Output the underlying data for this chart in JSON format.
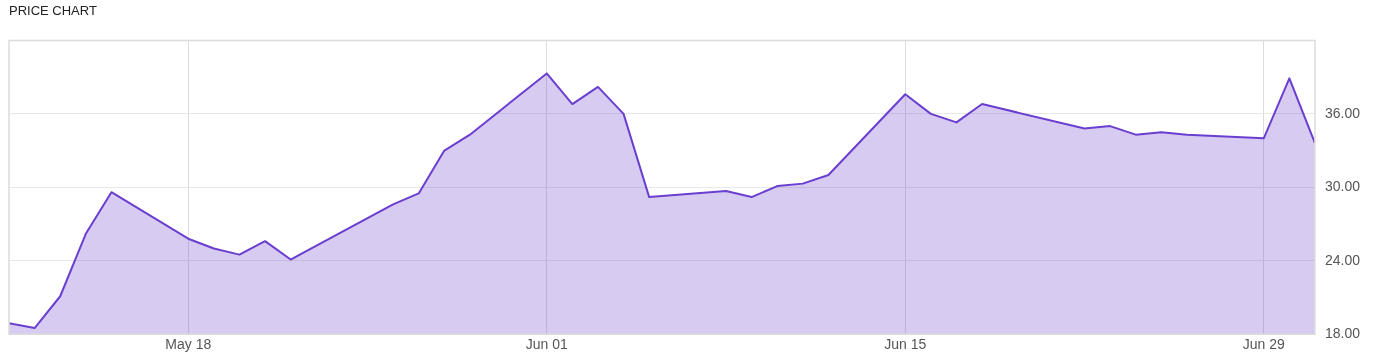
{
  "chart_data": {
    "type": "area",
    "title": "PRICE CHART",
    "x": [
      "--05-11",
      "--05-12",
      "--05-13",
      "--05-14",
      "--05-15",
      "--05-18",
      "--05-19",
      "--05-20",
      "--05-21",
      "--05-22",
      "--05-26",
      "--05-27",
      "--05-28",
      "--05-29",
      "--06-01",
      "--06-02",
      "--06-03",
      "--06-04",
      "--06-05",
      "--06-08",
      "--06-09",
      "--06-10",
      "--06-11",
      "--06-12",
      "--06-15",
      "--06-16",
      "--06-17",
      "--06-18",
      "--06-22",
      "--06-23",
      "--06-24",
      "--06-25",
      "--06-26",
      "--06-29",
      "--06-30",
      "--07-01"
    ],
    "series": [
      {
        "color": "#6a3fd0",
        "values": [
          18.9,
          18.5,
          21.1,
          26.2,
          29.6,
          25.8,
          25.0,
          24.5,
          25.6,
          24.1,
          28.6,
          29.5,
          33.0,
          34.3,
          39.3,
          36.8,
          38.2,
          36.0,
          29.2,
          29.7,
          29.2,
          30.1,
          30.3,
          31.0,
          37.6,
          36.0,
          35.3,
          36.8,
          34.8,
          35.0,
          34.3,
          34.5,
          34.3,
          34.0,
          38.9,
          33.6
        ]
      }
    ],
    "xlim": [
      "--05-11",
      "--07-01"
    ],
    "xticks": [
      {
        "value": "--05-18",
        "label": "May 18"
      },
      {
        "value": "--06-01",
        "label": "Jun 01"
      },
      {
        "value": "--06-15",
        "label": "Jun 15"
      },
      {
        "value": "--06-29",
        "label": "Jun 29"
      }
    ],
    "ylim": [
      18,
      42
    ],
    "yticks": [
      {
        "value": 18,
        "label": "18.00"
      },
      {
        "value": 24,
        "label": "24.00"
      },
      {
        "value": 30,
        "label": "30.00"
      },
      {
        "value": 36,
        "label": "36.00"
      }
    ],
    "grid": true,
    "legend": false,
    "marker": "none",
    "line_style": "solid"
  }
}
